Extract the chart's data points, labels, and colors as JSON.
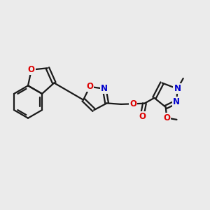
{
  "bg_color": "#ebebeb",
  "bond_color": "#1a1a1a",
  "bond_width": 1.6,
  "atom_O_color": "#dd0000",
  "atom_N_color": "#0000cc",
  "font_size": 8.5,
  "fig_w": 3.0,
  "fig_h": 3.0,
  "dpi": 100,
  "xlim": [
    0,
    10
  ],
  "ylim": [
    0,
    10
  ]
}
